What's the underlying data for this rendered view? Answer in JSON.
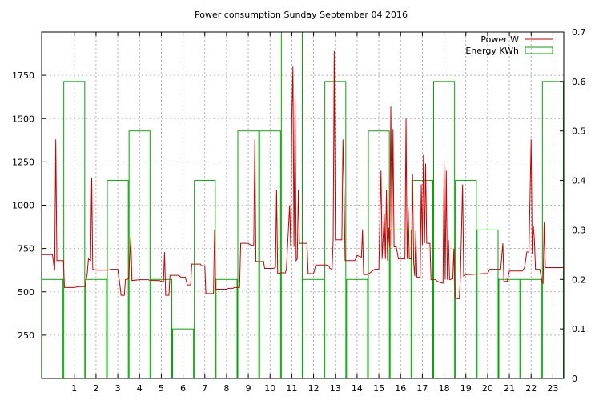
{
  "chart_data": {
    "type": "bar",
    "title": "Power consumption Sunday September 04 2016",
    "grid": true,
    "legend_position": "top-right",
    "colors": {
      "power": "#cc0000",
      "energy": "#00aa00",
      "grid": "#a0a0a0",
      "axis": "#000000"
    },
    "x_ticks": [
      "1",
      "2",
      "3",
      "4",
      "5",
      "6",
      "7",
      "8",
      "9",
      "10",
      "11",
      "12",
      "13",
      "14",
      "15",
      "16",
      "17",
      "18",
      "19",
      "20",
      "21",
      "22",
      "23"
    ],
    "x_range": [
      -0.5,
      23.5
    ],
    "y_ticks_left": [
      "250",
      "500",
      "750",
      "1000",
      "1250",
      "1500",
      "1750"
    ],
    "y_ticks_right": [
      "0",
      "0.1",
      "0.2",
      "0.3",
      "0.4",
      "0.5",
      "0.6",
      "0.7"
    ],
    "ylim_left": [
      0,
      2000
    ],
    "ylim_right": [
      0,
      0.7
    ],
    "series": [
      {
        "name": "Power W",
        "axis": "left",
        "type": "line",
        "points": [
          [
            -0.5,
            715
          ],
          [
            0.0,
            715
          ],
          [
            0.05,
            660
          ],
          [
            0.1,
            625
          ],
          [
            0.15,
            1380
          ],
          [
            0.2,
            680
          ],
          [
            0.5,
            680
          ],
          [
            0.55,
            525
          ],
          [
            1.0,
            525
          ],
          [
            1.2,
            530
          ],
          [
            1.5,
            530
          ],
          [
            1.6,
            610
          ],
          [
            1.65,
            690
          ],
          [
            1.75,
            680
          ],
          [
            1.8,
            1160
          ],
          [
            1.85,
            630
          ],
          [
            2.0,
            625
          ],
          [
            2.5,
            625
          ],
          [
            2.7,
            630
          ],
          [
            3.0,
            630
          ],
          [
            3.1,
            540
          ],
          [
            3.15,
            480
          ],
          [
            3.3,
            480
          ],
          [
            3.35,
            570
          ],
          [
            3.5,
            575
          ],
          [
            3.6,
            820
          ],
          [
            3.65,
            565
          ],
          [
            4.0,
            570
          ],
          [
            4.4,
            570
          ],
          [
            4.5,
            565
          ],
          [
            4.9,
            565
          ],
          [
            5.0,
            560
          ],
          [
            5.1,
            560
          ],
          [
            5.15,
            730
          ],
          [
            5.2,
            480
          ],
          [
            5.35,
            480
          ],
          [
            5.4,
            595
          ],
          [
            5.8,
            595
          ],
          [
            5.9,
            585
          ],
          [
            6.1,
            585
          ],
          [
            6.2,
            540
          ],
          [
            6.35,
            540
          ],
          [
            6.4,
            660
          ],
          [
            6.8,
            660
          ],
          [
            6.85,
            650
          ],
          [
            7.0,
            650
          ],
          [
            7.05,
            490
          ],
          [
            7.4,
            490
          ],
          [
            7.45,
            860
          ],
          [
            7.5,
            515
          ],
          [
            8.0,
            515
          ],
          [
            8.1,
            520
          ],
          [
            8.3,
            520
          ],
          [
            8.35,
            525
          ],
          [
            8.6,
            525
          ],
          [
            8.65,
            780
          ],
          [
            9.0,
            780
          ],
          [
            9.1,
            770
          ],
          [
            9.25,
            770
          ],
          [
            9.3,
            1380
          ],
          [
            9.35,
            675
          ],
          [
            9.5,
            675
          ],
          [
            9.7,
            675
          ],
          [
            9.75,
            635
          ],
          [
            10.0,
            635
          ],
          [
            10.15,
            635
          ],
          [
            10.25,
            640
          ],
          [
            10.3,
            1090
          ],
          [
            10.35,
            605
          ],
          [
            10.5,
            610
          ],
          [
            10.7,
            610
          ],
          [
            10.75,
            630
          ],
          [
            10.8,
            750
          ],
          [
            10.9,
            1000
          ],
          [
            10.95,
            760
          ],
          [
            11.0,
            1500
          ],
          [
            11.05,
            1800
          ],
          [
            11.1,
            760
          ],
          [
            11.15,
            1630
          ],
          [
            11.2,
            680
          ],
          [
            11.25,
            690
          ],
          [
            11.3,
            1090
          ],
          [
            11.35,
            780
          ],
          [
            11.5,
            780
          ],
          [
            11.7,
            780
          ],
          [
            11.75,
            605
          ],
          [
            12.0,
            605
          ],
          [
            12.1,
            655
          ],
          [
            12.4,
            655
          ],
          [
            12.6,
            655
          ],
          [
            12.7,
            650
          ],
          [
            12.75,
            635
          ],
          [
            12.85,
            630
          ],
          [
            12.9,
            800
          ],
          [
            12.95,
            1890
          ],
          [
            13.0,
            800
          ],
          [
            13.3,
            800
          ],
          [
            13.35,
            1380
          ],
          [
            13.4,
            1090
          ],
          [
            13.45,
            680
          ],
          [
            13.6,
            680
          ],
          [
            13.9,
            680
          ],
          [
            14.0,
            710
          ],
          [
            14.2,
            700
          ],
          [
            14.25,
            860
          ],
          [
            14.3,
            600
          ],
          [
            14.5,
            600
          ],
          [
            14.6,
            610
          ],
          [
            14.8,
            630
          ],
          [
            15.0,
            630
          ],
          [
            15.1,
            1200
          ],
          [
            15.15,
            690
          ],
          [
            15.25,
            950
          ],
          [
            15.3,
            690
          ],
          [
            15.35,
            1090
          ],
          [
            15.4,
            680
          ],
          [
            15.45,
            870
          ],
          [
            15.5,
            760
          ],
          [
            15.55,
            1570
          ],
          [
            15.6,
            750
          ],
          [
            15.65,
            1440
          ],
          [
            15.7,
            760
          ],
          [
            15.8,
            760
          ],
          [
            15.9,
            690
          ],
          [
            16.0,
            690
          ],
          [
            16.1,
            690
          ],
          [
            16.2,
            690
          ],
          [
            16.25,
            1500
          ],
          [
            16.3,
            690
          ],
          [
            16.35,
            980
          ],
          [
            16.4,
            690
          ],
          [
            16.5,
            690
          ],
          [
            16.55,
            1180
          ],
          [
            16.6,
            670
          ],
          [
            16.65,
            590
          ],
          [
            16.7,
            850
          ],
          [
            16.75,
            585
          ],
          [
            16.9,
            585
          ],
          [
            16.95,
            1120
          ],
          [
            17.0,
            770
          ],
          [
            17.05,
            1290
          ],
          [
            17.1,
            780
          ],
          [
            17.15,
            1240
          ],
          [
            17.2,
            780
          ],
          [
            17.35,
            780
          ],
          [
            17.4,
            570
          ],
          [
            17.6,
            570
          ],
          [
            17.7,
            560
          ],
          [
            17.8,
            555
          ],
          [
            17.95,
            550
          ],
          [
            18.0,
            1240
          ],
          [
            18.05,
            570
          ],
          [
            18.1,
            1200
          ],
          [
            18.15,
            570
          ],
          [
            18.2,
            800
          ],
          [
            18.25,
            570
          ],
          [
            18.4,
            575
          ],
          [
            18.45,
            750
          ],
          [
            18.5,
            465
          ],
          [
            18.6,
            460
          ],
          [
            18.7,
            460
          ],
          [
            18.75,
            590
          ],
          [
            18.85,
            1120
          ],
          [
            18.9,
            590
          ],
          [
            19.0,
            600
          ],
          [
            19.2,
            600
          ],
          [
            19.8,
            605
          ],
          [
            20.0,
            605
          ],
          [
            20.1,
            630
          ],
          [
            20.6,
            630
          ],
          [
            20.7,
            780
          ],
          [
            20.75,
            560
          ],
          [
            20.9,
            560
          ],
          [
            21.0,
            620
          ],
          [
            21.3,
            620
          ],
          [
            21.6,
            620
          ],
          [
            21.7,
            640
          ],
          [
            21.8,
            730
          ],
          [
            21.9,
            730
          ],
          [
            22.0,
            1380
          ],
          [
            22.05,
            720
          ],
          [
            22.1,
            880
          ],
          [
            22.15,
            800
          ],
          [
            22.2,
            630
          ],
          [
            22.4,
            630
          ],
          [
            22.5,
            560
          ],
          [
            22.55,
            550
          ],
          [
            22.6,
            900
          ],
          [
            22.65,
            640
          ],
          [
            23.5,
            640
          ]
        ]
      },
      {
        "name": "Energy KWh",
        "axis": "right",
        "type": "step-bar",
        "hours": [
          0,
          1,
          2,
          3,
          4,
          5,
          6,
          7,
          8,
          9,
          10,
          11,
          12,
          13,
          14,
          15,
          16,
          17,
          18,
          19,
          20,
          21,
          22,
          23
        ],
        "values": [
          0.2,
          0.6,
          0.2,
          0.4,
          0.5,
          0.2,
          0.1,
          0.4,
          0.2,
          0.5,
          0.5,
          0.7,
          0.2,
          0.6,
          0.2,
          0.5,
          0.3,
          0.4,
          0.6,
          0.4,
          0.3,
          0.2,
          0.2,
          0.6
        ]
      }
    ]
  }
}
